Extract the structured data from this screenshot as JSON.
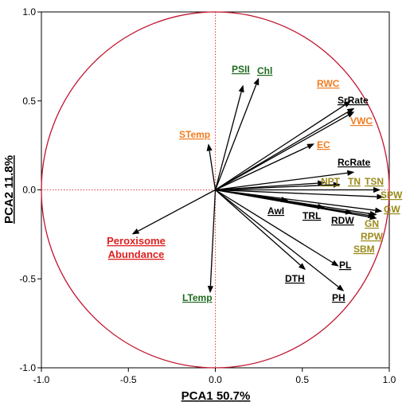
{
  "chart_data": {
    "type": "scatter",
    "subtype": "pca-biplot-correlation-circle",
    "xlabel": "PCA1  50.7%",
    "ylabel": "PCA2  11.8%",
    "xlim": [
      -1.0,
      1.0
    ],
    "ylim": [
      -1.0,
      1.0
    ],
    "x_ticks": [
      "-1.0",
      "-0.5",
      "0.0",
      "0.5",
      "1.0"
    ],
    "y_ticks": [
      "1.0",
      "0.5",
      "0.0",
      "-0.5",
      "-1.0"
    ],
    "x_tick_values": [
      -1.0,
      -0.5,
      0.0,
      0.5,
      1.0
    ],
    "y_tick_values": [
      1.0,
      0.5,
      0.0,
      -0.5,
      -1.0
    ],
    "circle_radius": 1.0,
    "grid": false,
    "zero_lines": "dotted red",
    "colors": {
      "circle": "#c0142d",
      "zero_line": "#e04040",
      "arrow": "#000000",
      "black_label": "#000000",
      "orange_label": "#f07c1e",
      "green_label": "#1e6b1e",
      "olive_label": "#9a8a1a",
      "red_label": "#e02020"
    },
    "vectors": [
      {
        "label": "PSII",
        "x": 0.16,
        "y": 0.59,
        "color": "green"
      },
      {
        "label": "Chl",
        "x": 0.25,
        "y": 0.63,
        "color": "green"
      },
      {
        "label": "RWC",
        "x": 0.78,
        "y": 0.5,
        "color": "orange"
      },
      {
        "label": "SrRate",
        "x": 0.8,
        "y": 0.46,
        "color": "black"
      },
      {
        "label": "VWC",
        "x": 0.8,
        "y": 0.44,
        "color": "orange"
      },
      {
        "label": "STemp",
        "x": -0.04,
        "y": 0.26,
        "color": "orange"
      },
      {
        "label": "EC",
        "x": 0.57,
        "y": 0.26,
        "color": "orange"
      },
      {
        "label": "RcRate",
        "x": 0.8,
        "y": 0.1,
        "color": "black"
      },
      {
        "label": "NPT",
        "x": 0.63,
        "y": 0.04,
        "color": "olive"
      },
      {
        "label": "TN",
        "x": 0.72,
        "y": 0.03,
        "color": "olive"
      },
      {
        "label": "TSN",
        "x": 0.95,
        "y": 0.0,
        "color": "olive"
      },
      {
        "label": "SPW",
        "x": 0.97,
        "y": -0.04,
        "color": "olive"
      },
      {
        "label": "GW",
        "x": 0.96,
        "y": -0.12,
        "color": "olive"
      },
      {
        "label": "GN",
        "x": 0.93,
        "y": -0.14,
        "color": "olive"
      },
      {
        "label": "RPW",
        "x": 0.93,
        "y": -0.16,
        "color": "olive"
      },
      {
        "label": "SBM",
        "x": 0.92,
        "y": -0.15,
        "color": "olive"
      },
      {
        "label": "AwI",
        "x": 0.42,
        "y": -0.06,
        "color": "black"
      },
      {
        "label": "TRL",
        "x": 0.63,
        "y": -0.1,
        "color": "black"
      },
      {
        "label": "RDW",
        "x": 0.79,
        "y": -0.13,
        "color": "black"
      },
      {
        "label": "PL",
        "x": 0.71,
        "y": -0.43,
        "color": "black"
      },
      {
        "label": "DTH",
        "x": 0.52,
        "y": -0.45,
        "color": "black"
      },
      {
        "label": "PH",
        "x": 0.74,
        "y": -0.57,
        "color": "black"
      },
      {
        "label": "LTemp",
        "x": -0.03,
        "y": -0.58,
        "color": "green"
      },
      {
        "label": "Peroxisome Abundance",
        "x": -0.48,
        "y": -0.25,
        "color": "red"
      }
    ]
  }
}
